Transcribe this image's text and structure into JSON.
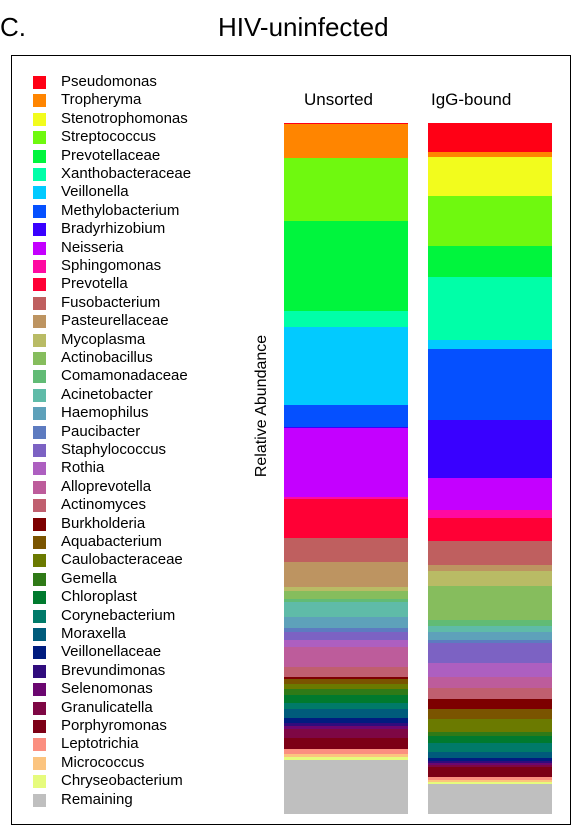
{
  "panel_letter": "C.",
  "title": "HIV-uninfected",
  "colors": {
    "Remaining": "#bfbfbf",
    "Chryseobacterium": "#e6fb7d",
    "Micrococcus": "#fbc47f",
    "Leptotrichia": "#fb8f80",
    "Porphyromonas": "#7d0016",
    "Granulicatella": "#7e0744",
    "Selenomonas": "#6b0770",
    "Brevundimonas": "#300c7d",
    "Veillonellaceae": "#001c7f",
    "Moraxella": "#005b7b",
    "Corynebacterium": "#007a69",
    "Chloroplast": "#007a2e",
    "Gemella": "#2f7a17",
    "Caulobacteraceae": "#6b7a00",
    "Aquabacterium": "#7a5400",
    "Burkholderia": "#7d0000",
    "Actinomyces": "#c05f6f",
    "Alloprevotella": "#bd5c9b",
    "Rothia": "#ad5fc0",
    "Staphylococcus": "#7c62c3",
    "Paucibacter": "#5d7bc0",
    "Haemophilus": "#5ea1ba",
    "Acinetobacter": "#5fbba8",
    "Comamonadaceae": "#61bb75",
    "Actinobacillus": "#86bd5d",
    "Mycoplasma": "#b9bb65",
    "Pasteurellaceae": "#bd9461",
    "Fusobacterium": "#bf5f5f",
    "Prevotella": "#ff0035",
    "Sphingomonas": "#ff0aa1",
    "Neisseria": "#c400ff",
    "Bradyrhizobium": "#3900ff",
    "Methylobacterium": "#0550ff",
    "Veillonella": "#02caff",
    "Xanthobacteraceae": "#00ffa8",
    "Prevotellaceae": "#00f53d",
    "Streptococcus": "#6ff90f",
    "Stenotrophomonas": "#f2fc1d",
    "Tropheryma": "#ff8500",
    "Pseudomonas": "#ff0015"
  },
  "chart_data": {
    "type": "bar",
    "stacked": true,
    "ylabel": "Relative Abundance",
    "ylim": [
      0,
      1
    ],
    "grid": false,
    "legend_position": "left",
    "categories": [
      "Unsorted",
      "IgG-bound"
    ],
    "series": [
      {
        "name": "Remaining",
        "values": [
          0.074,
          0.039
        ]
      },
      {
        "name": "Chryseobacterium",
        "values": [
          0.004,
          0.003
        ]
      },
      {
        "name": "Micrococcus",
        "values": [
          0.004,
          0.003
        ]
      },
      {
        "name": "Leptotrichia",
        "values": [
          0.008,
          0.003
        ]
      },
      {
        "name": "Porphyromonas",
        "values": [
          0.015,
          0.013
        ]
      },
      {
        "name": "Granulicatella",
        "values": [
          0.012,
          0.003
        ]
      },
      {
        "name": "Selenomonas",
        "values": [
          0.004,
          0.003
        ]
      },
      {
        "name": "Brevundimonas",
        "values": [
          0.004,
          0.003
        ]
      },
      {
        "name": "Veillonellaceae",
        "values": [
          0.007,
          0.003
        ]
      },
      {
        "name": "Moraxella",
        "values": [
          0.012,
          0.008
        ]
      },
      {
        "name": "Corynebacterium",
        "values": [
          0.009,
          0.012
        ]
      },
      {
        "name": "Chloroplast",
        "values": [
          0.01,
          0.009
        ]
      },
      {
        "name": "Gemella",
        "values": [
          0.009,
          0.006
        ]
      },
      {
        "name": "Caulobacteraceae",
        "values": [
          0.007,
          0.016
        ]
      },
      {
        "name": "Aquabacterium",
        "values": [
          0.006,
          0.014
        ]
      },
      {
        "name": "Burkholderia",
        "values": [
          0.004,
          0.013
        ]
      },
      {
        "name": "Actinomyces",
        "values": [
          0.013,
          0.014
        ]
      },
      {
        "name": "Alloprevotella",
        "values": [
          0.028,
          0.014
        ]
      },
      {
        "name": "Rothia",
        "values": [
          0.009,
          0.019
        ]
      },
      {
        "name": "Staphylococcus",
        "values": [
          0.011,
          0.026
        ]
      },
      {
        "name": "Paucibacter",
        "values": [
          0.006,
          0.004
        ]
      },
      {
        "name": "Haemophilus",
        "values": [
          0.015,
          0.01
        ]
      },
      {
        "name": "Acinetobacter",
        "values": [
          0.021,
          0.009
        ]
      },
      {
        "name": "Comamonadaceae",
        "values": [
          0.003,
          0.007
        ]
      },
      {
        "name": "Actinobacillus",
        "values": [
          0.012,
          0.045
        ]
      },
      {
        "name": "Mycoplasma",
        "values": [
          0.005,
          0.019
        ]
      },
      {
        "name": "Pasteurellaceae",
        "values": [
          0.034,
          0.009
        ]
      },
      {
        "name": "Fusobacterium",
        "values": [
          0.033,
          0.031
        ]
      },
      {
        "name": "Prevotella",
        "values": [
          0.054,
          0.03
        ]
      },
      {
        "name": "Sphingomonas",
        "values": [
          0.003,
          0.011
        ]
      },
      {
        "name": "Neisseria",
        "values": [
          0.094,
          0.041
        ]
      },
      {
        "name": "Bradyrhizobium",
        "values": [
          0.002,
          0.077
        ]
      },
      {
        "name": "Methylobacterium",
        "values": [
          0.03,
          0.093
        ]
      },
      {
        "name": "Veillonella",
        "values": [
          0.108,
          0.012
        ]
      },
      {
        "name": "Xanthobacteraceae",
        "values": [
          0.021,
          0.082
        ]
      },
      {
        "name": "Prevotellaceae",
        "values": [
          0.124,
          0.041
        ]
      },
      {
        "name": "Streptococcus",
        "values": [
          0.087,
          0.065
        ]
      },
      {
        "name": "Stenotrophomonas",
        "values": [
          0.0,
          0.052
        ]
      },
      {
        "name": "Tropheryma",
        "values": [
          0.046,
          0.006
        ]
      },
      {
        "name": "Pseudomonas",
        "values": [
          0.002,
          0.038
        ]
      }
    ]
  }
}
